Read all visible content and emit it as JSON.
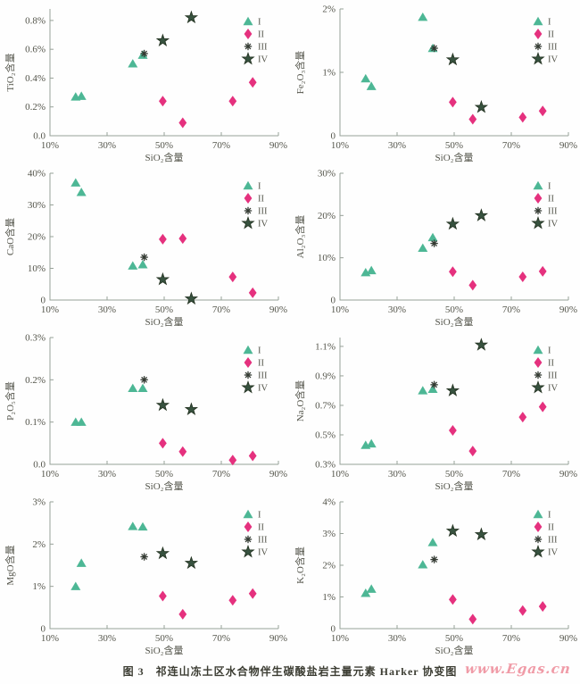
{
  "figure": {
    "caption": "图 3　祁连山冻土区水合物伴生碳酸盐岩主量元素 Harker 协变图",
    "watermark": "www.Egas.cn"
  },
  "colors": {
    "axis": "#97a198",
    "tick_text": "#53544a",
    "caption_text": "#3c3d33",
    "watermark_pink": "#f09ba7",
    "series_I_green": "#4db795",
    "series_II_pink": "#e5317e",
    "series_III_dark": "#343b33",
    "series_IV_darkgreen": "#37523f"
  },
  "series_styles": {
    "I": {
      "marker": "triangle",
      "color": "#4db795"
    },
    "II": {
      "marker": "diamond",
      "color": "#e5317e"
    },
    "III": {
      "marker": "asterisk",
      "color": "#343b33"
    },
    "IV": {
      "marker": "star",
      "color": "#37523f"
    }
  },
  "legend_entries": [
    "I",
    "II",
    "III",
    "IV"
  ],
  "chart_data": [
    {
      "type": "scatter",
      "ylabel": "TiO₂含量",
      "xlabel": "SiO₂含量",
      "xlim": [
        10,
        90
      ],
      "x_ticks": [
        10,
        30,
        50,
        70,
        90
      ],
      "x_tick_labels": [
        "10%",
        "30%",
        "50%",
        "70%",
        "90%"
      ],
      "ylim": [
        0,
        0.88
      ],
      "y_ticks": [
        0,
        0.2,
        0.4,
        0.6,
        0.8
      ],
      "y_tick_labels": [
        "0.0",
        "0.2%",
        "0.4%",
        "0.6%",
        "0.8%"
      ],
      "series": [
        {
          "name": "I",
          "points": [
            [
              19,
              0.27
            ],
            [
              21,
              0.275
            ],
            [
              39,
              0.5
            ],
            [
              42.5,
              0.56
            ]
          ]
        },
        {
          "name": "II",
          "points": [
            [
              49.5,
              0.24
            ],
            [
              56.5,
              0.09
            ],
            [
              74,
              0.24
            ],
            [
              81,
              0.37
            ]
          ]
        },
        {
          "name": "III",
          "points": [
            [
              43,
              0.57
            ]
          ]
        },
        {
          "name": "IV",
          "points": [
            [
              49.5,
              0.66
            ],
            [
              59.5,
              0.82
            ]
          ]
        }
      ]
    },
    {
      "type": "scatter",
      "ylabel": "Fe₂O₃含量",
      "xlabel": "SiO₂含量",
      "xlim": [
        10,
        90
      ],
      "x_ticks": [
        10,
        30,
        50,
        70,
        90
      ],
      "x_tick_labels": [
        "10%",
        "30%",
        "50%",
        "70%",
        "90%"
      ],
      "ylim": [
        0,
        2
      ],
      "y_ticks": [
        0,
        1,
        2
      ],
      "y_tick_labels": [
        "0",
        "1%",
        "2%"
      ],
      "series": [
        {
          "name": "I",
          "points": [
            [
              19,
              0.9
            ],
            [
              21,
              0.78
            ],
            [
              39,
              1.87
            ],
            [
              42.5,
              1.38
            ]
          ]
        },
        {
          "name": "II",
          "points": [
            [
              49.5,
              0.53
            ],
            [
              56.5,
              0.26
            ],
            [
              74,
              0.29
            ],
            [
              81,
              0.39
            ]
          ]
        },
        {
          "name": "III",
          "points": [
            [
              43,
              1.38
            ]
          ]
        },
        {
          "name": "IV",
          "points": [
            [
              49.5,
              1.2
            ],
            [
              59.5,
              0.45
            ]
          ]
        }
      ]
    },
    {
      "type": "scatter",
      "ylabel": "CaO含量",
      "xlabel": "SiO₂含量",
      "xlim": [
        10,
        90
      ],
      "x_ticks": [
        10,
        30,
        50,
        70,
        90
      ],
      "x_tick_labels": [
        "10%",
        "30%",
        "50%",
        "70%",
        "90%"
      ],
      "ylim": [
        0,
        40
      ],
      "y_ticks": [
        0,
        10,
        20,
        30,
        40
      ],
      "y_tick_labels": [
        "0",
        "10%",
        "20%",
        "30%",
        "40%"
      ],
      "series": [
        {
          "name": "I",
          "points": [
            [
              19,
              37
            ],
            [
              21,
              34
            ],
            [
              39,
              10.8
            ],
            [
              42.5,
              11.2
            ]
          ]
        },
        {
          "name": "II",
          "points": [
            [
              49.5,
              19.2
            ],
            [
              56.5,
              19.4
            ],
            [
              74,
              7.3
            ],
            [
              81,
              2.3
            ]
          ]
        },
        {
          "name": "III",
          "points": [
            [
              43,
              13.5
            ]
          ]
        },
        {
          "name": "IV",
          "points": [
            [
              49.5,
              6.5
            ],
            [
              59.5,
              0.4
            ]
          ]
        }
      ]
    },
    {
      "type": "scatter",
      "ylabel": "Al₂O₃含量",
      "xlabel": "SiO₂含量",
      "xlim": [
        10,
        90
      ],
      "x_ticks": [
        10,
        30,
        50,
        70,
        90
      ],
      "x_tick_labels": [
        "10%",
        "30%",
        "50%",
        "70%",
        "90%"
      ],
      "ylim": [
        0,
        30
      ],
      "y_ticks": [
        0,
        10,
        20,
        30
      ],
      "y_tick_labels": [
        "0",
        "10%",
        "20%",
        "30%"
      ],
      "series": [
        {
          "name": "I",
          "points": [
            [
              19,
              6.5
            ],
            [
              21,
              7.0
            ],
            [
              39,
              12.3
            ],
            [
              42.5,
              14.8
            ]
          ]
        },
        {
          "name": "II",
          "points": [
            [
              49.5,
              6.7
            ],
            [
              56.5,
              3.5
            ],
            [
              74,
              5.5
            ],
            [
              81,
              6.8
            ]
          ]
        },
        {
          "name": "III",
          "points": [
            [
              43,
              13.4
            ]
          ]
        },
        {
          "name": "IV",
          "points": [
            [
              49.5,
              18.0
            ],
            [
              59.5,
              20.0
            ]
          ]
        }
      ]
    },
    {
      "type": "scatter",
      "ylabel": "P₂O₅含量",
      "xlabel": "SiO₂含量",
      "xlim": [
        10,
        90
      ],
      "x_ticks": [
        10,
        30,
        50,
        70,
        90
      ],
      "x_tick_labels": [
        "10%",
        "30%",
        "50%",
        "70%",
        "90%"
      ],
      "ylim": [
        0,
        0.3
      ],
      "y_ticks": [
        0,
        0.1,
        0.2,
        0.3
      ],
      "y_tick_labels": [
        "0.0",
        "0.1%",
        "0.2%",
        "0.3%"
      ],
      "series": [
        {
          "name": "I",
          "points": [
            [
              19,
              0.1
            ],
            [
              21,
              0.1
            ],
            [
              39,
              0.18
            ],
            [
              42.5,
              0.18
            ]
          ]
        },
        {
          "name": "II",
          "points": [
            [
              49.5,
              0.05
            ],
            [
              56.5,
              0.03
            ],
            [
              74,
              0.01
            ],
            [
              81,
              0.02
            ]
          ]
        },
        {
          "name": "III",
          "points": [
            [
              43,
              0.2
            ]
          ]
        },
        {
          "name": "IV",
          "points": [
            [
              49.5,
              0.14
            ],
            [
              59.5,
              0.13
            ]
          ]
        }
      ]
    },
    {
      "type": "scatter",
      "ylabel": "Na₂O含量",
      "xlabel": "SiO₂含量",
      "xlim": [
        10,
        90
      ],
      "x_ticks": [
        10,
        30,
        50,
        70,
        90
      ],
      "x_tick_labels": [
        "10%",
        "30%",
        "50%",
        "70%",
        "90%"
      ],
      "ylim": [
        0.3,
        1.16
      ],
      "y_ticks": [
        0.3,
        0.5,
        0.7,
        0.9,
        1.1
      ],
      "y_tick_labels": [
        "0.3%",
        "0.5%",
        "0.7%",
        "0.9%",
        "1.1%"
      ],
      "series": [
        {
          "name": "I",
          "points": [
            [
              19,
              0.43
            ],
            [
              21,
              0.44
            ],
            [
              39,
              0.8
            ],
            [
              42.5,
              0.81
            ]
          ]
        },
        {
          "name": "II",
          "points": [
            [
              49.5,
              0.53
            ],
            [
              56.5,
              0.39
            ],
            [
              74,
              0.62
            ],
            [
              81,
              0.69
            ]
          ]
        },
        {
          "name": "III",
          "points": [
            [
              43,
              0.84
            ]
          ]
        },
        {
          "name": "IV",
          "points": [
            [
              49.5,
              0.8
            ],
            [
              59.5,
              1.11
            ]
          ]
        }
      ]
    },
    {
      "type": "scatter",
      "ylabel": "MgO含量",
      "xlabel": "SiO₂含量",
      "xlim": [
        10,
        90
      ],
      "x_ticks": [
        10,
        30,
        50,
        70,
        90
      ],
      "x_tick_labels": [
        "10%",
        "30%",
        "50%",
        "70%",
        "90%"
      ],
      "ylim": [
        0,
        3
      ],
      "y_ticks": [
        0,
        1,
        2,
        3
      ],
      "y_tick_labels": [
        "0",
        "1%",
        "2%",
        "3%"
      ],
      "series": [
        {
          "name": "I",
          "points": [
            [
              19,
              1.0
            ],
            [
              21,
              1.55
            ],
            [
              39,
              2.42
            ],
            [
              42.5,
              2.41
            ]
          ]
        },
        {
          "name": "II",
          "points": [
            [
              49.5,
              0.77
            ],
            [
              56.5,
              0.34
            ],
            [
              74,
              0.67
            ],
            [
              81,
              0.83
            ]
          ]
        },
        {
          "name": "III",
          "points": [
            [
              43,
              1.7
            ]
          ]
        },
        {
          "name": "IV",
          "points": [
            [
              49.5,
              1.78
            ],
            [
              59.5,
              1.55
            ]
          ]
        }
      ]
    },
    {
      "type": "scatter",
      "ylabel": "K₂O含量",
      "xlabel": "SiO₂含量",
      "xlim": [
        10,
        90
      ],
      "x_ticks": [
        10,
        30,
        50,
        70,
        90
      ],
      "x_tick_labels": [
        "10%",
        "30%",
        "50%",
        "70%",
        "90%"
      ],
      "ylim": [
        0,
        4
      ],
      "y_ticks": [
        0,
        1,
        2,
        3,
        4
      ],
      "y_tick_labels": [
        "0",
        "1%",
        "2%",
        "3%",
        "4%"
      ],
      "series": [
        {
          "name": "I",
          "points": [
            [
              19,
              1.12
            ],
            [
              21,
              1.25
            ],
            [
              39,
              2.02
            ],
            [
              42.5,
              2.72
            ]
          ]
        },
        {
          "name": "II",
          "points": [
            [
              49.5,
              0.92
            ],
            [
              56.5,
              0.3
            ],
            [
              74,
              0.57
            ],
            [
              81,
              0.7
            ]
          ]
        },
        {
          "name": "III",
          "points": [
            [
              43,
              2.18
            ]
          ]
        },
        {
          "name": "IV",
          "points": [
            [
              49.5,
              3.08
            ],
            [
              59.5,
              2.97
            ]
          ]
        }
      ]
    }
  ]
}
